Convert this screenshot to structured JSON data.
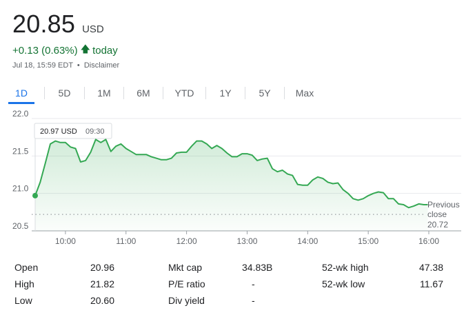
{
  "quote": {
    "price": "20.85",
    "currency": "USD",
    "change": "+0.13 (0.63%)",
    "change_suffix": "today",
    "timestamp": "Jul 18, 15:59 EDT",
    "disclaimer": "Disclaimer",
    "color_up": "#137333"
  },
  "tabs": [
    {
      "label": "1D",
      "active": true
    },
    {
      "label": "5D",
      "active": false
    },
    {
      "label": "1M",
      "active": false
    },
    {
      "label": "6M",
      "active": false
    },
    {
      "label": "YTD",
      "active": false
    },
    {
      "label": "1Y",
      "active": false
    },
    {
      "label": "5Y",
      "active": false
    },
    {
      "label": "Max",
      "active": false
    }
  ],
  "tooltip": {
    "value": "20.97 USD",
    "time": "09:30"
  },
  "previous_close": {
    "label_line1": "Previous",
    "label_line2": "close",
    "value": "20.72"
  },
  "chart_data": {
    "type": "area",
    "title": "",
    "xlabel": "",
    "ylabel": "",
    "ylim": [
      20.5,
      22.0
    ],
    "y_ticks": [
      "22.0",
      "21.5",
      "21.0",
      "20.5"
    ],
    "x_tick_labels": [
      "10:00",
      "11:00",
      "12:00",
      "13:00",
      "14:00",
      "15:00",
      "16:00"
    ],
    "grid": "horizontal",
    "line_color": "#34a853",
    "previous_close": 20.72,
    "series": [
      {
        "values": [
          [
            "09:30",
            20.97
          ],
          [
            "09:35",
            21.15
          ],
          [
            "09:40",
            21.4
          ],
          [
            "09:45",
            21.66
          ],
          [
            "09:50",
            21.7
          ],
          [
            "09:55",
            21.68
          ],
          [
            "10:00",
            21.68
          ],
          [
            "10:05",
            21.62
          ],
          [
            "10:10",
            21.6
          ],
          [
            "10:15",
            21.42
          ],
          [
            "10:20",
            21.44
          ],
          [
            "10:25",
            21.55
          ],
          [
            "10:30",
            21.72
          ],
          [
            "10:35",
            21.68
          ],
          [
            "10:40",
            21.72
          ],
          [
            "10:45",
            21.56
          ],
          [
            "10:50",
            21.63
          ],
          [
            "10:55",
            21.66
          ],
          [
            "11:00",
            21.6
          ],
          [
            "11:05",
            21.56
          ],
          [
            "11:10",
            21.52
          ],
          [
            "11:15",
            21.52
          ],
          [
            "11:20",
            21.52
          ],
          [
            "11:25",
            21.49
          ],
          [
            "11:30",
            21.47
          ],
          [
            "11:35",
            21.45
          ],
          [
            "11:40",
            21.45
          ],
          [
            "11:45",
            21.47
          ],
          [
            "11:50",
            21.54
          ],
          [
            "11:55",
            21.55
          ],
          [
            "12:00",
            21.55
          ],
          [
            "12:05",
            21.63
          ],
          [
            "12:10",
            21.7
          ],
          [
            "12:15",
            21.7
          ],
          [
            "12:20",
            21.66
          ],
          [
            "12:25",
            21.6
          ],
          [
            "12:30",
            21.64
          ],
          [
            "12:35",
            21.6
          ],
          [
            "12:40",
            21.54
          ],
          [
            "12:45",
            21.49
          ],
          [
            "12:50",
            21.49
          ],
          [
            "12:55",
            21.53
          ],
          [
            "13:00",
            21.53
          ],
          [
            "13:05",
            21.51
          ],
          [
            "13:10",
            21.44
          ],
          [
            "13:15",
            21.46
          ],
          [
            "13:20",
            21.47
          ],
          [
            "13:25",
            21.33
          ],
          [
            "13:30",
            21.29
          ],
          [
            "13:35",
            21.31
          ],
          [
            "13:40",
            21.26
          ],
          [
            "13:45",
            21.24
          ],
          [
            "13:50",
            21.12
          ],
          [
            "13:55",
            21.11
          ],
          [
            "14:00",
            21.11
          ],
          [
            "14:05",
            21.18
          ],
          [
            "14:10",
            21.22
          ],
          [
            "14:15",
            21.2
          ],
          [
            "14:20",
            21.15
          ],
          [
            "14:25",
            21.13
          ],
          [
            "14:30",
            21.14
          ],
          [
            "14:35",
            21.05
          ],
          [
            "14:40",
            21.0
          ],
          [
            "14:45",
            20.93
          ],
          [
            "14:50",
            20.91
          ],
          [
            "14:55",
            20.93
          ],
          [
            "15:00",
            20.97
          ],
          [
            "15:05",
            21.0
          ],
          [
            "15:10",
            21.02
          ],
          [
            "15:15",
            21.01
          ],
          [
            "15:20",
            20.93
          ],
          [
            "15:25",
            20.93
          ],
          [
            "15:30",
            20.86
          ],
          [
            "15:35",
            20.85
          ],
          [
            "15:40",
            20.81
          ],
          [
            "15:45",
            20.83
          ],
          [
            "15:50",
            20.86
          ],
          [
            "15:55",
            20.85
          ],
          [
            "15:59",
            20.85
          ]
        ]
      }
    ]
  },
  "stats": [
    {
      "label": "Open",
      "value": "20.96"
    },
    {
      "label": "High",
      "value": "21.82"
    },
    {
      "label": "Low",
      "value": "20.60"
    },
    {
      "label": "Mkt cap",
      "value": "34.83B"
    },
    {
      "label": "P/E ratio",
      "value": "-"
    },
    {
      "label": "Div yield",
      "value": "-"
    },
    {
      "label": "52-wk high",
      "value": "47.38"
    },
    {
      "label": "52-wk low",
      "value": "11.67"
    }
  ]
}
